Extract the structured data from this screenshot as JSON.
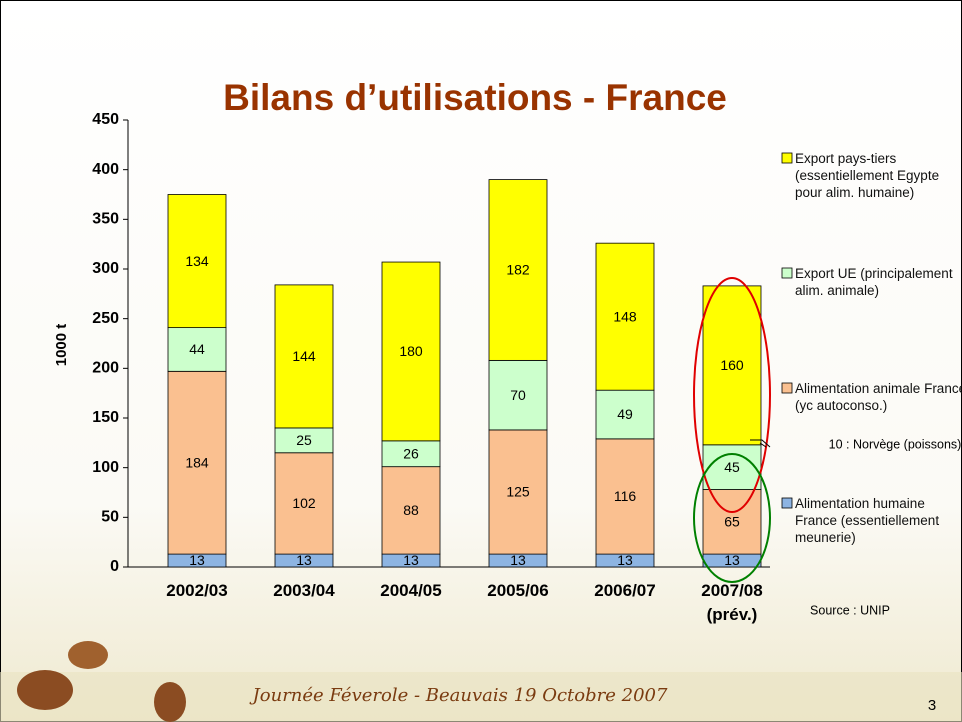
{
  "chart_data": {
    "type": "stacked_bar",
    "title": "Bilans d’utilisations - France",
    "y_label": "1000 t",
    "categories": [
      "2002/03",
      "2003/04",
      "2004/05",
      "2005/06",
      "2006/07",
      "2007/08 (prév.)"
    ],
    "series": [
      {
        "name": "Alimentation humaine France (essentiellement meunerie)",
        "color": "#8db4e2",
        "values": [
          13,
          13,
          13,
          13,
          13,
          13
        ]
      },
      {
        "name": "Alimentation animale France (yc autoconso.)",
        "color": "#fac090",
        "values": [
          184,
          102,
          88,
          125,
          116,
          65
        ]
      },
      {
        "name": "Export UE (principalement alim. animale)",
        "color": "#ccffcc",
        "values": [
          44,
          25,
          26,
          70,
          49,
          45
        ]
      },
      {
        "name": "Export pays-tiers (essentiellement Egypte pour alim. humaine)",
        "color": "#ffff00",
        "values": [
          134,
          144,
          180,
          182,
          148,
          160
        ]
      }
    ],
    "ylim": [
      0,
      450
    ],
    "yticks": [
      0,
      50,
      100,
      150,
      200,
      250,
      300,
      350,
      400,
      450
    ],
    "grid": false,
    "legend": "right",
    "annotations": [
      "10 : Norvège (poissons)",
      "Source : UNIP"
    ]
  },
  "footer": {
    "event": "Journée Féverole - Beauvais 19 Octobre 2007",
    "page": 3
  }
}
